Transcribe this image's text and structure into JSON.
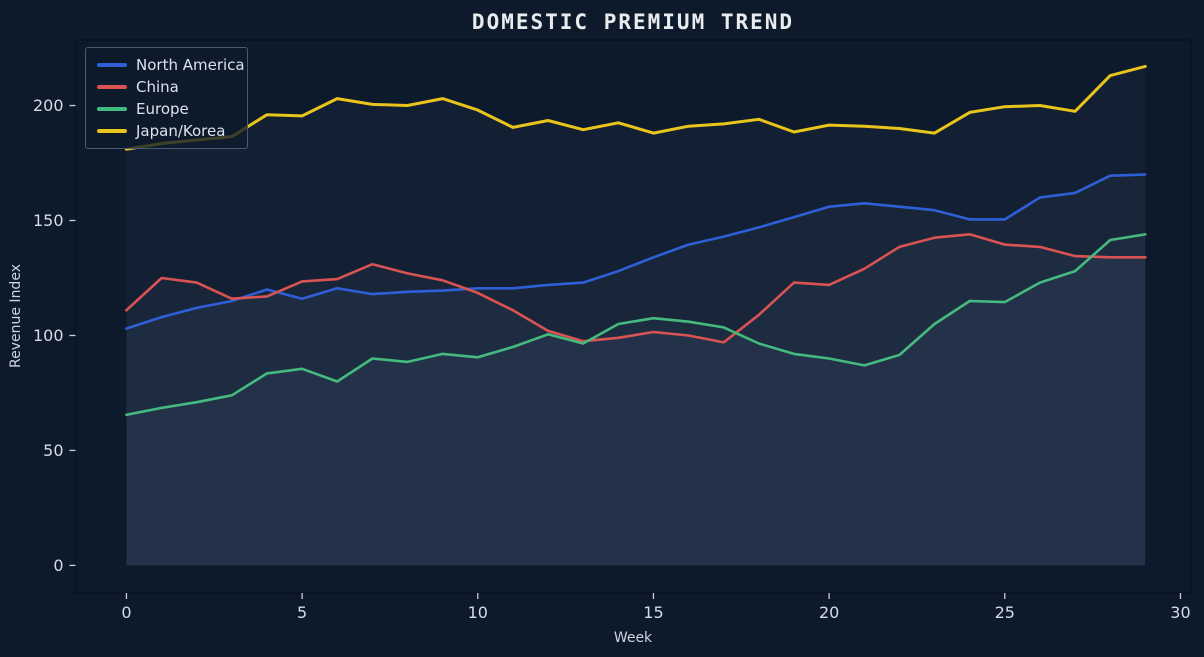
{
  "colors": {
    "figure_background": "#0d1a2b",
    "spine": "#0a1120",
    "tick_mark": "#c9d1da",
    "tick_text": "#d5dce4",
    "title_text": "#e9ecef",
    "axis_label_text": "#ccd4dd",
    "area_fill": "rgba(170,195,225,0.045)",
    "series_colors": [
      "#2e5fd7",
      "#da5353",
      "#45ba7e",
      "#e8c41c"
    ]
  },
  "chart_data": {
    "type": "line",
    "title": "DOMESTIC PREMIUM TREND",
    "xlabel": "Week",
    "ylabel": "Revenue Index",
    "grid": false,
    "legend_position": "upper left",
    "xlim": [
      -1.45,
      30.3
    ],
    "ylim": [
      -12,
      228.5
    ],
    "x_ticks": [
      0,
      5,
      10,
      15,
      20,
      25,
      30
    ],
    "y_ticks": [
      0,
      50,
      100,
      150,
      200
    ],
    "x": [
      0,
      1,
      2,
      3,
      4,
      5,
      6,
      7,
      8,
      9,
      10,
      11,
      12,
      13,
      14,
      15,
      16,
      17,
      18,
      19,
      20,
      21,
      22,
      23,
      24,
      25,
      26,
      27,
      28,
      29
    ],
    "series": [
      {
        "name": "North America",
        "color": "#2e5fd7",
        "values": [
          103,
          108,
          112,
          115,
          120,
          116,
          120.5,
          118,
          119,
          119.5,
          120.5,
          120.5,
          122,
          123,
          128,
          134,
          139.5,
          143,
          147,
          151.5,
          156,
          157.5,
          156,
          154.5,
          150.5,
          150.5,
          160,
          162,
          169.5,
          170
        ]
      },
      {
        "name": "China",
        "color": "#da5353",
        "values": [
          111,
          125,
          123,
          116,
          117,
          123.5,
          124.5,
          131,
          127,
          124,
          118.5,
          111,
          102,
          97.5,
          99,
          101.5,
          100,
          97,
          109,
          123,
          122,
          129,
          138.5,
          142.5,
          144,
          139.5,
          138.5,
          134.5,
          134,
          134
        ]
      },
      {
        "name": "Europe",
        "color": "#45ba7e",
        "values": [
          65.5,
          68.5,
          71,
          74,
          83.5,
          85.5,
          80,
          90,
          88.5,
          92,
          90.5,
          95,
          100.5,
          96.5,
          105,
          107.5,
          106,
          103.5,
          96.5,
          92,
          90,
          87,
          91.5,
          105,
          115,
          114.5,
          123,
          128,
          141.5,
          144
        ]
      },
      {
        "name": "Japan/Korea",
        "color": "#e8c41c",
        "values": [
          181,
          183.5,
          185,
          186.5,
          196,
          195.5,
          203,
          200.5,
          200,
          203,
          198,
          190.5,
          193.5,
          189.5,
          192.5,
          188,
          191,
          192,
          194,
          188.5,
          191.5,
          191,
          190,
          188,
          197,
          199.5,
          200,
          197.5,
          213,
          217
        ]
      }
    ]
  }
}
